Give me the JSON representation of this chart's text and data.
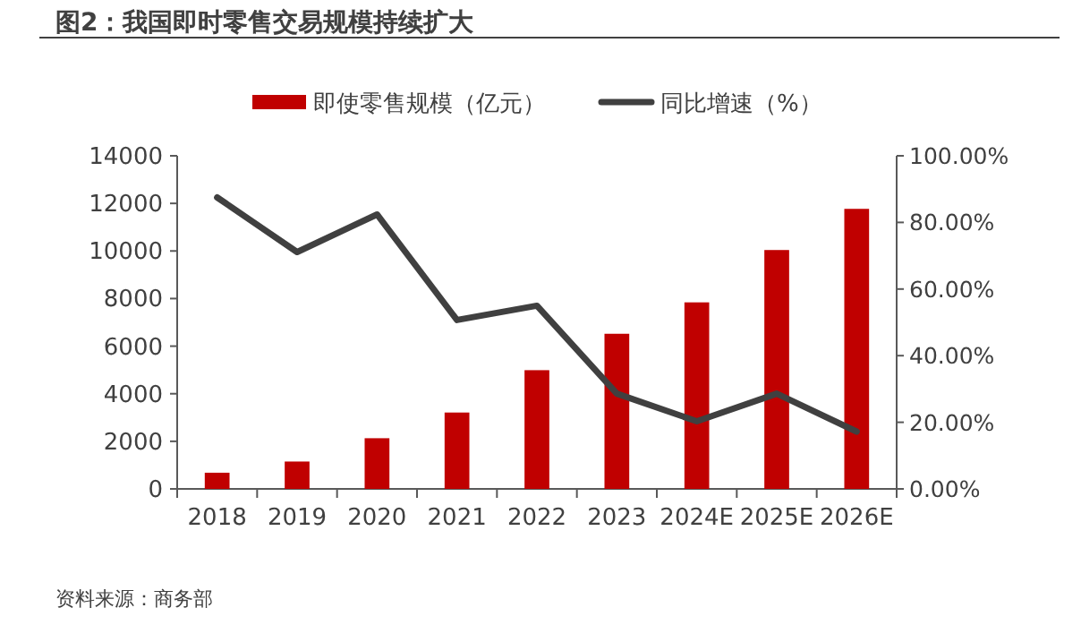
{
  "chart_data": {
    "type": "bar",
    "title": "图2：我国即时零售交易规模持续扩大",
    "categories": [
      "2018",
      "2019",
      "2020",
      "2021",
      "2022",
      "2023",
      "2024E",
      "2025E",
      "2026E"
    ],
    "series": [
      {
        "name": "即使零售规模（亿元）",
        "color": "#c00000",
        "values": [
          680,
          1150,
          2130,
          3210,
          4990,
          6520,
          7840,
          10040,
          11770
        ]
      },
      {
        "name": "同比增速（%）",
        "type": "line",
        "axis": "y2",
        "color": "#404040",
        "values": [
          87.5,
          71.1,
          82.4,
          50.7,
          55.0,
          28.6,
          20.3,
          28.6,
          17.2
        ]
      }
    ],
    "ylim": [
      0,
      14000
    ],
    "yticks": [
      0,
      2000,
      4000,
      6000,
      8000,
      10000,
      12000,
      14000
    ],
    "y2lim": [
      0,
      100
    ],
    "y2ticks": [
      {
        "value": 0,
        "label": "0.00%"
      },
      {
        "value": 20,
        "label": "20.00%"
      },
      {
        "value": 40,
        "label": "40.00%"
      },
      {
        "value": 60,
        "label": "60.00%"
      },
      {
        "value": 80,
        "label": "80.00%"
      },
      {
        "value": 100,
        "label": "100.00%"
      }
    ],
    "grid": false,
    "legend": "top",
    "annotations": [
      "资料来源：商务部"
    ]
  }
}
